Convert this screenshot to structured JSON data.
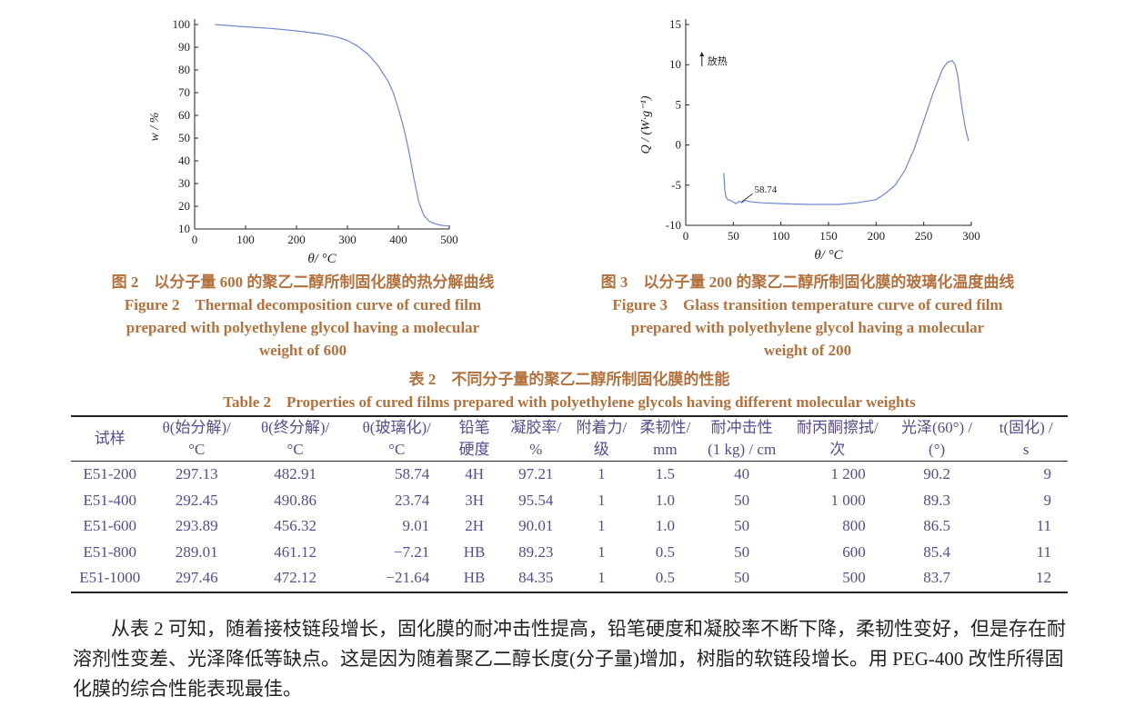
{
  "figure2": {
    "chart_data": {
      "type": "line",
      "xlabel": "θ/ °C",
      "ylabel": "w / %",
      "xlim": [
        0,
        500
      ],
      "ylim": [
        10,
        100
      ],
      "xticks": [
        "0",
        "100",
        "200",
        "300",
        "400",
        "500"
      ],
      "yticks": [
        "10",
        "20",
        "30",
        "40",
        "50",
        "60",
        "70",
        "80",
        "90",
        "100"
      ],
      "grid": false,
      "series": [
        {
          "color": "#6f86cf",
          "x": [
            40,
            100,
            150,
            200,
            250,
            280,
            300,
            320,
            340,
            360,
            380,
            390,
            400,
            410,
            420,
            430,
            440,
            450,
            460,
            470,
            480,
            490,
            500
          ],
          "y": [
            100,
            99,
            98.3,
            97.2,
            95.8,
            94.5,
            93,
            90.5,
            87,
            82,
            75,
            70,
            63,
            55,
            45,
            33,
            22,
            16,
            13.5,
            12.5,
            11.8,
            11.5,
            11.3
          ]
        }
      ]
    },
    "caption_cn": "图 2　以分子量 600 的聚乙二醇所制固化膜的热分解曲线",
    "caption_en": [
      "Figure 2　Thermal decomposition curve of cured film",
      "prepared with polyethylene glycol having a molecular",
      "weight of 600"
    ]
  },
  "figure3": {
    "chart_data": {
      "type": "line",
      "xlabel": "θ/ °C",
      "ylabel": "Q / (W·g⁻¹)",
      "xlim": [
        0,
        300
      ],
      "ylim": [
        -10,
        15
      ],
      "xticks": [
        "0",
        "50",
        "100",
        "150",
        "200",
        "250",
        "300"
      ],
      "yticks": [
        "-10",
        "-5",
        "0",
        "5",
        "10",
        "15"
      ],
      "grid": false,
      "annotations": [
        {
          "x": 58.74,
          "y": -7.2,
          "label": "58.74"
        },
        {
          "label": "放热"
        }
      ],
      "series": [
        {
          "color": "#6f86cf",
          "x": [
            40,
            41,
            42,
            44,
            47,
            50,
            53,
            56,
            58.74,
            62,
            70,
            80,
            100,
            130,
            160,
            180,
            200,
            205,
            210,
            220,
            230,
            240,
            250,
            260,
            270,
            275,
            280,
            283,
            286,
            288,
            291,
            294,
            297
          ],
          "y": [
            -3.5,
            -5.5,
            -6.4,
            -6.8,
            -6.9,
            -7.1,
            -7.3,
            -7.0,
            -7.2,
            -6.9,
            -7.1,
            -7.2,
            -7.3,
            -7.4,
            -7.4,
            -7.2,
            -6.8,
            -6.4,
            -6.0,
            -5.0,
            -3.2,
            -0.5,
            3.0,
            6.5,
            9.5,
            10.3,
            10.5,
            10.0,
            8.5,
            6.5,
            4.0,
            2.0,
            0.5
          ]
        }
      ]
    },
    "caption_cn": "图 3　以分子量 200 的聚乙二醇所制固化膜的玻璃化温度曲线",
    "caption_en": [
      "Figure 3　Glass transition temperature curve of cured film",
      "prepared with polyethylene glycol having a molecular",
      "weight of 200"
    ]
  },
  "table2": {
    "title_cn": "表 2　不同分子量的聚乙二醇所制固化膜的性能",
    "title_en": "Table 2　Properties of cured films prepared with polyethylene glycols having different molecular weights",
    "headers": [
      [
        "试样",
        ""
      ],
      [
        "θ(始分解)/",
        "°C"
      ],
      [
        "θ(终分解)/",
        "°C"
      ],
      [
        "θ(玻璃化)/",
        "°C"
      ],
      [
        "铅笔",
        "硬度"
      ],
      [
        "凝胶率/",
        "%"
      ],
      [
        "附着力/",
        "级"
      ],
      [
        "柔韧性/",
        "mm"
      ],
      [
        "耐冲击性",
        "(1 kg) / cm"
      ],
      [
        "耐丙酮擦拭/",
        "次"
      ],
      [
        "光泽(60°) /",
        "(°)"
      ],
      [
        "t(固化) /",
        "s"
      ]
    ],
    "rows": [
      [
        "E51-200",
        "297.13",
        "482.91",
        "58.74",
        "4H",
        "97.21",
        "1",
        "1.5",
        "40",
        "1 200",
        "90.2",
        "9"
      ],
      [
        "E51-400",
        "292.45",
        "490.86",
        "23.74",
        "3H",
        "95.54",
        "1",
        "1.0",
        "50",
        "1 000",
        "89.3",
        "9"
      ],
      [
        "E51-600",
        "293.89",
        "456.32",
        "9.01",
        "2H",
        "90.01",
        "1",
        "1.0",
        "50",
        "800",
        "86.5",
        "11"
      ],
      [
        "E51-800",
        "289.01",
        "461.12",
        "−7.21",
        "HB",
        "89.23",
        "1",
        "0.5",
        "50",
        "600",
        "85.4",
        "11"
      ],
      [
        "E51-1000",
        "297.46",
        "472.12",
        "−21.64",
        "HB",
        "84.35",
        "1",
        "0.5",
        "50",
        "500",
        "83.7",
        "12"
      ]
    ]
  },
  "paragraph": "从表 2 可知，随着接枝链段增长，固化膜的耐冲击性提高，铅笔硬度和凝胶率不断下降，柔韧性变好，但是存在耐溶剂性变差、光泽降低等缺点。这是因为随着聚乙二醇长度(分子量)增加，树脂的软链段增长。用 PEG-400 改性所得固化膜的综合性能表现最佳。"
}
